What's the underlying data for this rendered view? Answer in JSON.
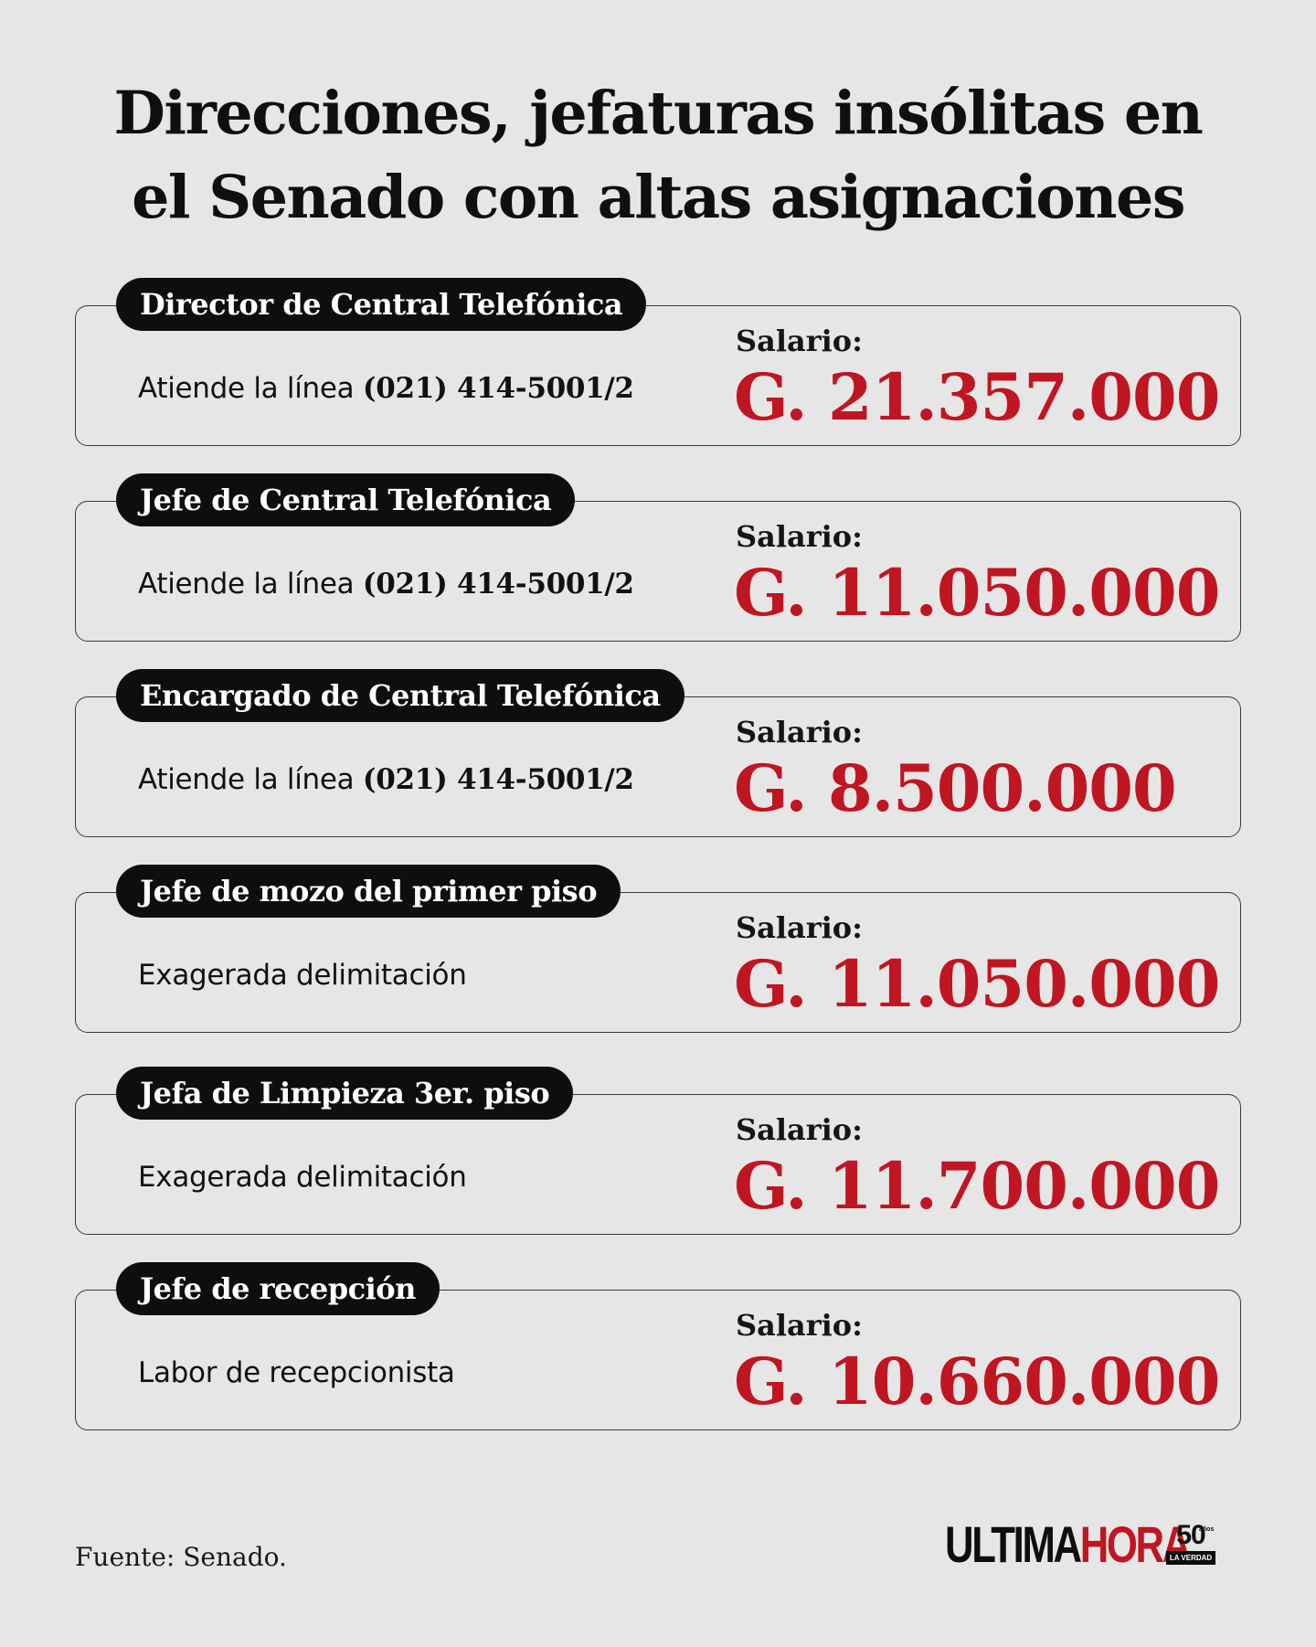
{
  "title_line1": "Direcciones, jefaturas insólitas en",
  "title_line2": "el Senado con altas asignaciones",
  "salary_label": "Salario:",
  "cards": [
    {
      "role": "Director de Central Telefónica",
      "description": "Atiende la línea ",
      "phone": "(021) 414-5001/2",
      "salary": "G. 21.357.000"
    },
    {
      "role": "Jefe de Central Telefónica",
      "description": "Atiende la línea ",
      "phone": "(021) 414-5001/2",
      "salary": "G. 11.050.000"
    },
    {
      "role": "Encargado de Central Telefónica",
      "description": "Atiende la línea ",
      "phone": "(021) 414-5001/2",
      "salary": "G. 8.500.000"
    },
    {
      "role": "Jefe de mozo del primer piso",
      "description": "Exagerada delimitación",
      "phone": "",
      "salary": "G. 11.050.000"
    },
    {
      "role": "Jefa de Limpieza 3er. piso",
      "description": "Exagerada delimitación",
      "phone": "",
      "salary": "G. 11.700.000"
    },
    {
      "role": "Jefe de recepción",
      "description": "Labor de recepcionista",
      "phone": "",
      "salary": "G. 10.660.000"
    }
  ],
  "source": "Fuente: Senado.",
  "logo": {
    "ultima": "ULTIMA",
    "hora": "HORA",
    "badge_number": "50",
    "badge_small": "años",
    "badge_bar": "LA VERDAD"
  },
  "colors": {
    "background": "#e7e6e7",
    "salary_red": "#bf1622",
    "label_black": "#0e0e0e"
  }
}
